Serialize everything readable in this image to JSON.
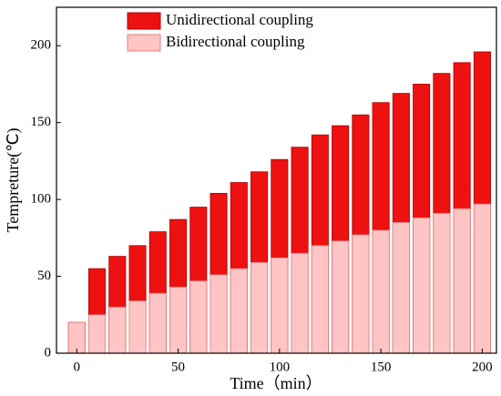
{
  "chart_data": {
    "type": "bar",
    "xlabel": "Time（min）",
    "ylabel": "Tempreture(℃)",
    "x": [
      0,
      10,
      20,
      30,
      40,
      50,
      60,
      70,
      80,
      90,
      100,
      110,
      120,
      130,
      140,
      150,
      160,
      170,
      180,
      190,
      200
    ],
    "series": [
      {
        "name": "Unidirectional coupling",
        "color": "#ee1111",
        "values": [
          20,
          55,
          63,
          70,
          79,
          87,
          95,
          104,
          111,
          118,
          126,
          134,
          142,
          148,
          155,
          163,
          169,
          175,
          182,
          189,
          196
        ]
      },
      {
        "name": "Bidirectional coupling",
        "color": "#ffc4c4",
        "values": [
          20,
          25,
          30,
          34,
          39,
          43,
          47,
          51,
          55,
          59,
          62,
          65,
          70,
          73,
          77,
          80,
          85,
          88,
          91,
          94,
          97
        ]
      }
    ],
    "xlim": [
      -10,
      207
    ],
    "xticks": [
      0,
      50,
      100,
      150,
      200
    ],
    "ylim": [
      0,
      225
    ],
    "yticks": [
      0,
      50,
      100,
      150,
      200
    ],
    "grid": false,
    "legend": "upper left"
  }
}
